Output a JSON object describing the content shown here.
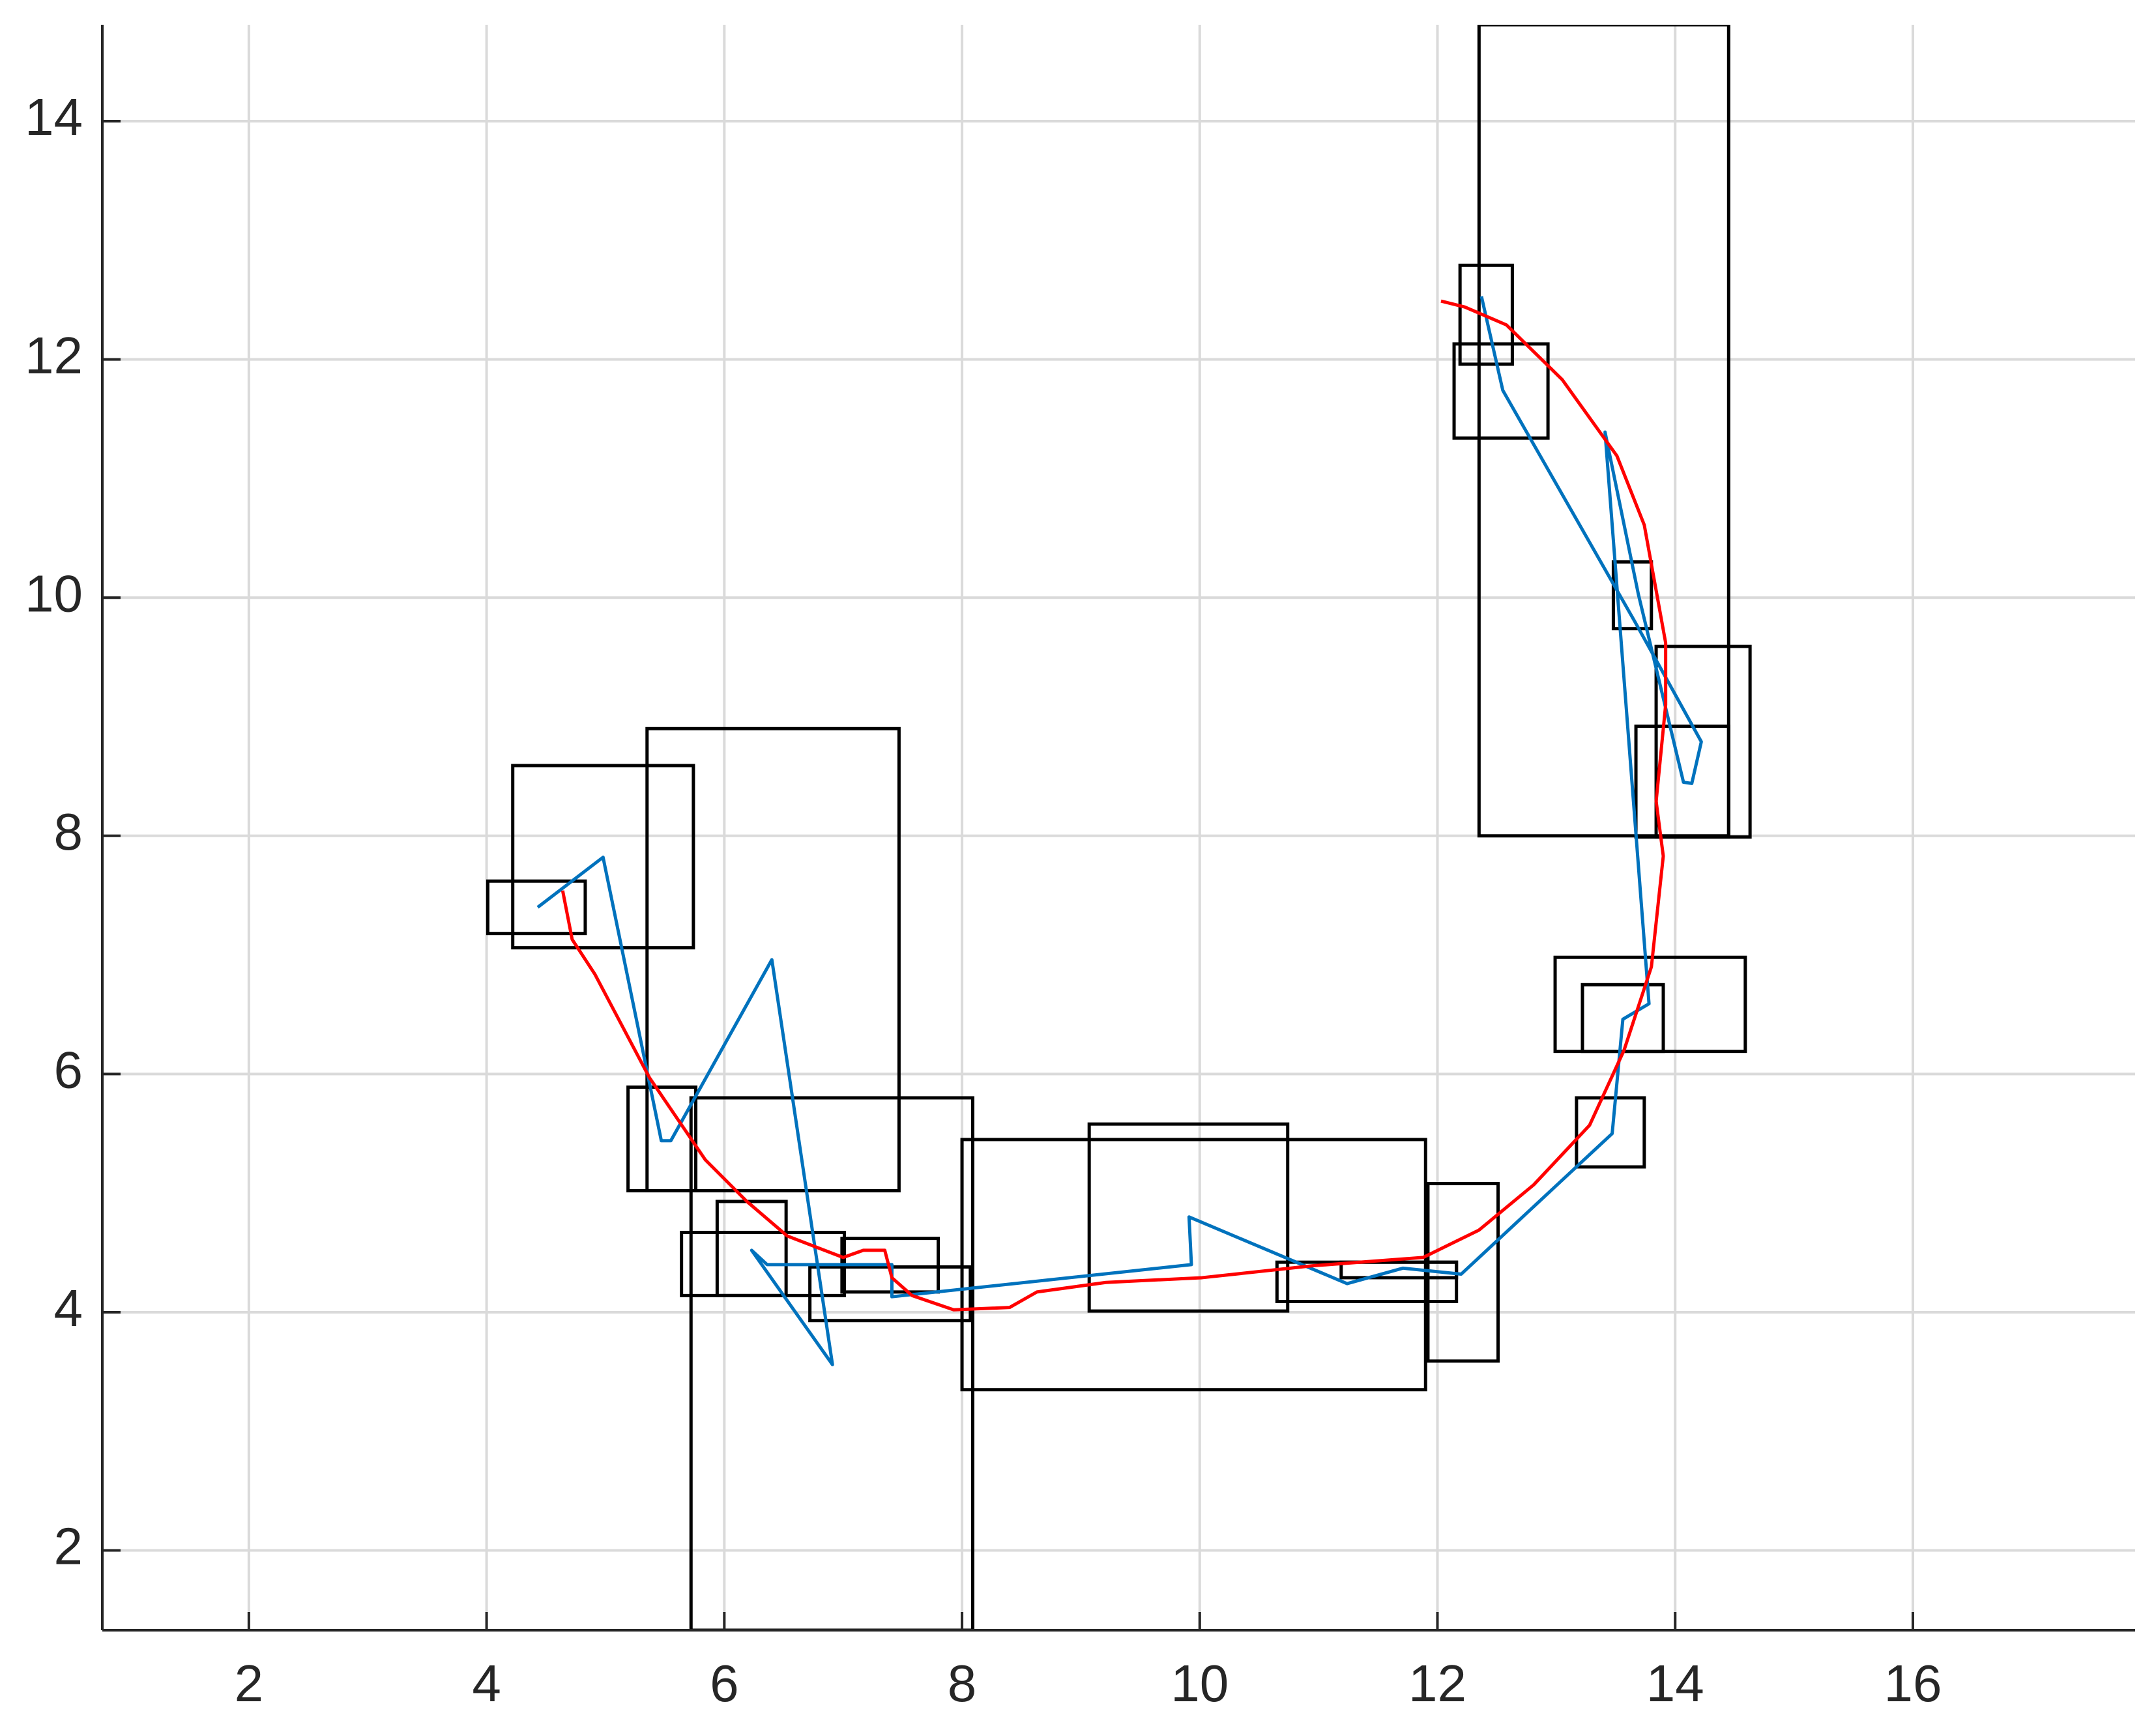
{
  "chart_data": {
    "type": "line",
    "xlim": [
      0.767,
      17.87
    ],
    "ylim": [
      1.33,
      14.81
    ],
    "xticks": [
      2,
      4,
      6,
      8,
      10,
      12,
      14,
      16
    ],
    "yticks": [
      2,
      4,
      6,
      8,
      10,
      12,
      14
    ],
    "grid": true,
    "rectangle_color": "#000000",
    "rectangles": [
      [
        12.35,
        8.0,
        14.45,
        14.81
      ],
      [
        12.19,
        11.96,
        12.63,
        12.79
      ],
      [
        12.14,
        11.34,
        12.93,
        12.13
      ],
      [
        13.48,
        9.74,
        13.8,
        10.3
      ],
      [
        13.84,
        7.99,
        14.63,
        9.59
      ],
      [
        13.67,
        7.99,
        14.45,
        8.92
      ],
      [
        12.99,
        6.19,
        14.59,
        6.98
      ],
      [
        13.22,
        6.19,
        13.9,
        6.75
      ],
      [
        13.17,
        5.22,
        13.74,
        5.8
      ],
      [
        11.92,
        3.59,
        12.51,
        5.08
      ],
      [
        8.0,
        3.35,
        11.9,
        5.45
      ],
      [
        9.07,
        4.01,
        10.74,
        5.58
      ],
      [
        10.65,
        4.09,
        12.16,
        4.42
      ],
      [
        11.19,
        4.29,
        12.16,
        4.42
      ],
      [
        5.35,
        5.02,
        7.47,
        8.9
      ],
      [
        4.22,
        7.06,
        5.74,
        8.59
      ],
      [
        4.01,
        7.18,
        4.83,
        7.62
      ],
      [
        5.19,
        5.02,
        5.76,
        5.89
      ],
      [
        5.72,
        1.33,
        8.09,
        5.8
      ],
      [
        5.94,
        4.14,
        6.52,
        4.93
      ],
      [
        5.64,
        4.14,
        7.01,
        4.67
      ],
      [
        6.99,
        4.17,
        7.8,
        4.62
      ],
      [
        6.72,
        3.93,
        8.07,
        4.38
      ]
    ],
    "series": [
      {
        "color": "#0072bd",
        "x": [
          4.43,
          4.98,
          5.47,
          5.55,
          6.4,
          6.91,
          6.23,
          6.36,
          7.41,
          7.41,
          9.93,
          9.91,
          11.24,
          11.71,
          12.2,
          13.47,
          13.56,
          13.78,
          13.41,
          13.69,
          14.07,
          14.14,
          14.22,
          13.66,
          12.55,
          12.37
        ],
        "values": [
          7.4,
          7.82,
          5.44,
          5.44,
          6.96,
          3.56,
          4.52,
          4.4,
          4.4,
          4.13,
          4.4,
          4.8,
          4.24,
          4.37,
          4.32,
          5.5,
          6.46,
          6.59,
          11.39,
          10.03,
          8.45,
          8.44,
          8.79,
          9.8,
          11.74,
          12.53
        ]
      },
      {
        "color": "#ff0000",
        "x": [
          4.64,
          4.72,
          4.91,
          5.37,
          5.84,
          6.19,
          6.53,
          7.0,
          7.17,
          7.35,
          7.41,
          7.58,
          7.93,
          8.4,
          8.63,
          9.21,
          10.02,
          10.95,
          11.88,
          12.35,
          12.81,
          13.28,
          13.57,
          13.8,
          13.9,
          13.84,
          13.92,
          13.92,
          13.74,
          13.51,
          13.05,
          12.58,
          12.23,
          12.03
        ],
        "values": [
          7.54,
          7.13,
          6.84,
          5.97,
          5.28,
          4.93,
          4.64,
          4.46,
          4.52,
          4.52,
          4.29,
          4.14,
          4.02,
          4.04,
          4.17,
          4.25,
          4.29,
          4.39,
          4.46,
          4.69,
          5.07,
          5.57,
          6.2,
          6.9,
          7.83,
          8.29,
          9.1,
          9.62,
          10.61,
          11.19,
          11.83,
          12.29,
          12.44,
          12.49
        ]
      }
    ]
  }
}
